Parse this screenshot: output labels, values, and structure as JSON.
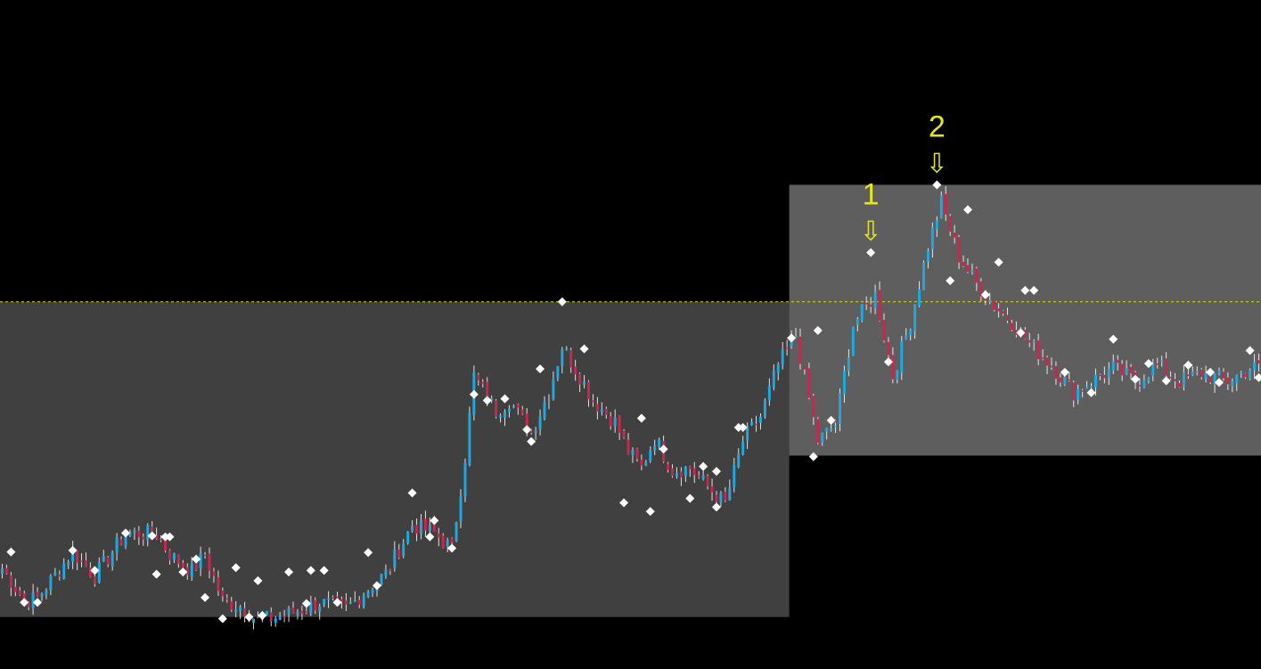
{
  "chart_data": {
    "type": "candlestick",
    "x_count": 286,
    "ylim": [
      0,
      100
    ],
    "grid": false,
    "legend": "none",
    "colors": {
      "background": "#000000",
      "up": "#1fa7e0",
      "down": "#c8284e",
      "wick": "#ffffff",
      "pivot": "#ffffff",
      "level": "#d8d820",
      "marker": "#e6e61e",
      "range_left": "#404040",
      "range_right": "#5e5e5e"
    },
    "level": 62.7,
    "ranges": [
      {
        "x_start": 0,
        "x_end": 179,
        "y_low": 4.5,
        "y_high": 62.7
      },
      {
        "x_start": 179,
        "x_end": 285,
        "y_low": 34.3,
        "y_high": 84.3
      }
    ],
    "anchors": [
      [
        0,
        13.5
      ],
      [
        5,
        7.5
      ],
      [
        8,
        8.0
      ],
      [
        16,
        16.5
      ],
      [
        21,
        12.0
      ],
      [
        28,
        20.0
      ],
      [
        35,
        19.8
      ],
      [
        38,
        16.0
      ],
      [
        43,
        13.0
      ],
      [
        46,
        16.0
      ],
      [
        50,
        7.5
      ],
      [
        54,
        6.5
      ],
      [
        58,
        3.8
      ],
      [
        65,
        5.0
      ],
      [
        72,
        7.2
      ],
      [
        78,
        6.0
      ],
      [
        82,
        9.0
      ],
      [
        87,
        12.5
      ],
      [
        93,
        21.5
      ],
      [
        98,
        20.0
      ],
      [
        102,
        17.0
      ],
      [
        105,
        34.0
      ],
      [
        107,
        49.0
      ],
      [
        112,
        42.5
      ],
      [
        115,
        44.5
      ],
      [
        120,
        38.5
      ],
      [
        124,
        46.0
      ],
      [
        127,
        54.5
      ],
      [
        131,
        49.0
      ],
      [
        134,
        44.5
      ],
      [
        139,
        40.5
      ],
      [
        142,
        35.0
      ],
      [
        145,
        32.0
      ],
      [
        148,
        37.5
      ],
      [
        152,
        31.5
      ],
      [
        156,
        32.0
      ],
      [
        160,
        28.5
      ],
      [
        164,
        25.5
      ],
      [
        168,
        37.0
      ],
      [
        172,
        41.5
      ],
      [
        176,
        51.0
      ],
      [
        180,
        56.5
      ],
      [
        185,
        37.0
      ],
      [
        189,
        40.0
      ],
      [
        193,
        58.5
      ],
      [
        198,
        64.0
      ],
      [
        202,
        49.0
      ],
      [
        206,
        59.0
      ],
      [
        210,
        73.0
      ],
      [
        213,
        81.0
      ],
      [
        217,
        71.0
      ],
      [
        221,
        66.0
      ],
      [
        225,
        62.0
      ],
      [
        229,
        59.0
      ],
      [
        233,
        55.0
      ],
      [
        238,
        51.0
      ],
      [
        243,
        46.0
      ],
      [
        247,
        48.0
      ],
      [
        252,
        50.5
      ],
      [
        257,
        48.0
      ],
      [
        262,
        51.0
      ],
      [
        267,
        48.0
      ],
      [
        272,
        49.5
      ],
      [
        278,
        48.0
      ],
      [
        283,
        50.5
      ]
    ],
    "pivots": [
      {
        "x": 2,
        "y": 16.5,
        "pos": "high"
      },
      {
        "x": 16,
        "y": 16.8,
        "pos": "high"
      },
      {
        "x": 28,
        "y": 20.0,
        "pos": "high"
      },
      {
        "x": 34,
        "y": 19.5,
        "pos": "high"
      },
      {
        "x": 37,
        "y": 19.3,
        "pos": "high"
      },
      {
        "x": 38,
        "y": 19.3,
        "pos": "high"
      },
      {
        "x": 44,
        "y": 15.2,
        "pos": "high"
      },
      {
        "x": 53,
        "y": 13.6,
        "pos": "high"
      },
      {
        "x": 58,
        "y": 11.2,
        "pos": "high"
      },
      {
        "x": 65,
        "y": 12.8,
        "pos": "high"
      },
      {
        "x": 70,
        "y": 13.1,
        "pos": "high"
      },
      {
        "x": 73,
        "y": 13.1,
        "pos": "high"
      },
      {
        "x": 83,
        "y": 16.4,
        "pos": "high"
      },
      {
        "x": 93,
        "y": 27.4,
        "pos": "high"
      },
      {
        "x": 98,
        "y": 22.3,
        "pos": "high"
      },
      {
        "x": 107,
        "y": 45.6,
        "pos": "high"
      },
      {
        "x": 110,
        "y": 44.5,
        "pos": "high"
      },
      {
        "x": 114,
        "y": 44.8,
        "pos": "high"
      },
      {
        "x": 119,
        "y": 39.1,
        "pos": "high"
      },
      {
        "x": 122,
        "y": 50.3,
        "pos": "high"
      },
      {
        "x": 127,
        "y": 62.7,
        "pos": "high"
      },
      {
        "x": 132,
        "y": 54.0,
        "pos": "high"
      },
      {
        "x": 145,
        "y": 41.2,
        "pos": "high"
      },
      {
        "x": 150,
        "y": 35.5,
        "pos": "high"
      },
      {
        "x": 159,
        "y": 32.3,
        "pos": "high"
      },
      {
        "x": 162,
        "y": 31.4,
        "pos": "high"
      },
      {
        "x": 167,
        "y": 39.5,
        "pos": "high"
      },
      {
        "x": 168,
        "y": 39.5,
        "pos": "high"
      },
      {
        "x": 179,
        "y": 56.0,
        "pos": "high"
      },
      {
        "x": 185,
        "y": 57.4,
        "pos": "high"
      },
      {
        "x": 197,
        "y": 71.8,
        "pos": "high"
      },
      {
        "x": 212,
        "y": 84.3,
        "pos": "high"
      },
      {
        "x": 219,
        "y": 79.7,
        "pos": "high"
      },
      {
        "x": 226,
        "y": 70.0,
        "pos": "high"
      },
      {
        "x": 232,
        "y": 64.8,
        "pos": "high"
      },
      {
        "x": 234,
        "y": 64.8,
        "pos": "high"
      },
      {
        "x": 252,
        "y": 55.8,
        "pos": "high"
      },
      {
        "x": 260,
        "y": 51.3,
        "pos": "high"
      },
      {
        "x": 269,
        "y": 51.0,
        "pos": "high"
      },
      {
        "x": 274,
        "y": 49.7,
        "pos": "high"
      },
      {
        "x": 283,
        "y": 53.7,
        "pos": "high"
      },
      {
        "x": 5,
        "y": 7.2,
        "pos": "low"
      },
      {
        "x": 8,
        "y": 7.2,
        "pos": "low"
      },
      {
        "x": 21,
        "y": 13.1,
        "pos": "low"
      },
      {
        "x": 35,
        "y": 12.4,
        "pos": "low"
      },
      {
        "x": 41,
        "y": 12.8,
        "pos": "low"
      },
      {
        "x": 46,
        "y": 8.1,
        "pos": "low"
      },
      {
        "x": 50,
        "y": 4.2,
        "pos": "low"
      },
      {
        "x": 56,
        "y": 4.5,
        "pos": "low"
      },
      {
        "x": 59,
        "y": 4.8,
        "pos": "low"
      },
      {
        "x": 69,
        "y": 7.0,
        "pos": "low"
      },
      {
        "x": 76,
        "y": 7.2,
        "pos": "low"
      },
      {
        "x": 85,
        "y": 10.3,
        "pos": "low"
      },
      {
        "x": 97,
        "y": 19.3,
        "pos": "low"
      },
      {
        "x": 102,
        "y": 17.2,
        "pos": "low"
      },
      {
        "x": 120,
        "y": 36.9,
        "pos": "low"
      },
      {
        "x": 141,
        "y": 25.6,
        "pos": "low"
      },
      {
        "x": 147,
        "y": 24.0,
        "pos": "low"
      },
      {
        "x": 156,
        "y": 26.4,
        "pos": "low"
      },
      {
        "x": 162,
        "y": 24.8,
        "pos": "low"
      },
      {
        "x": 188,
        "y": 40.8,
        "pos": "low"
      },
      {
        "x": 184,
        "y": 34.1,
        "pos": "low"
      },
      {
        "x": 201,
        "y": 51.6,
        "pos": "low"
      },
      {
        "x": 215,
        "y": 66.6,
        "pos": "low"
      },
      {
        "x": 223,
        "y": 64.0,
        "pos": "low"
      },
      {
        "x": 231,
        "y": 57.0,
        "pos": "low"
      },
      {
        "x": 241,
        "y": 49.7,
        "pos": "low"
      },
      {
        "x": 247,
        "y": 45.9,
        "pos": "low"
      },
      {
        "x": 257,
        "y": 48.4,
        "pos": "low"
      },
      {
        "x": 264,
        "y": 48.1,
        "pos": "low"
      },
      {
        "x": 276,
        "y": 47.8,
        "pos": "low"
      },
      {
        "x": 285,
        "y": 48.7,
        "pos": "low"
      }
    ],
    "markers": [
      {
        "label": "1",
        "x": 197,
        "y": 71.8,
        "arrow": "⇩"
      },
      {
        "label": "2",
        "x": 212,
        "y": 84.3,
        "arrow": "⇩"
      }
    ]
  }
}
